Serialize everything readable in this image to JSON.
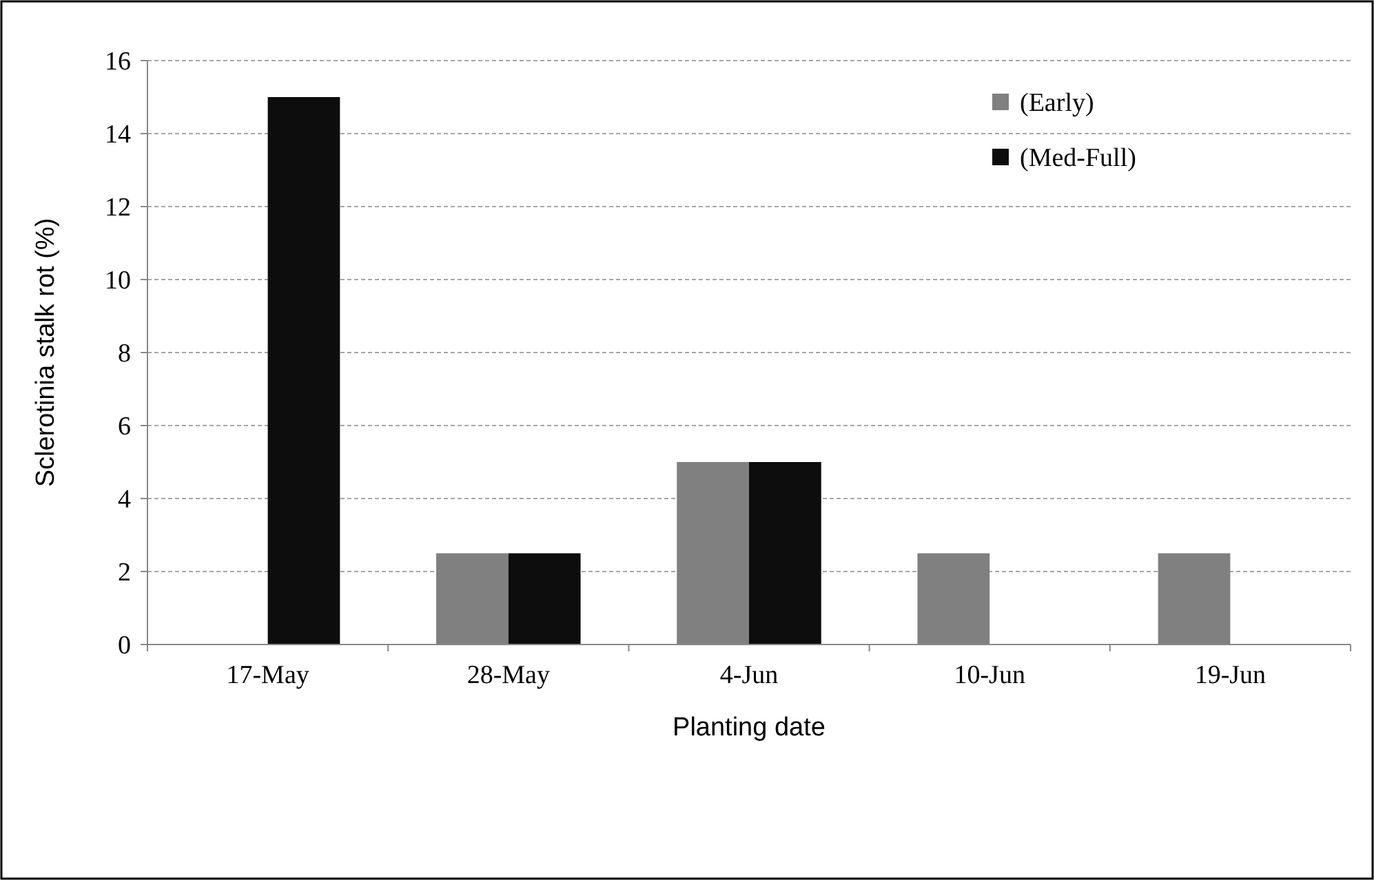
{
  "chart_data": {
    "type": "bar",
    "xlabel": "Planting date",
    "ylabel": "Sclerotinia stalk rot (%)",
    "categories": [
      "17-May",
      "28-May",
      "4-Jun",
      "10-Jun",
      "19-Jun"
    ],
    "series": [
      {
        "name": "(Early)",
        "color": "#808080",
        "values": [
          0,
          2.5,
          5,
          2.5,
          2.5
        ]
      },
      {
        "name": "(Med-Full)",
        "color": "#0d0d0d",
        "values": [
          15,
          2.5,
          5,
          0,
          0
        ]
      }
    ],
    "ylim": [
      0,
      16
    ],
    "yticks": [
      0,
      2,
      4,
      6,
      8,
      10,
      12,
      14,
      16
    ],
    "grid": "y",
    "legend": "top right"
  }
}
